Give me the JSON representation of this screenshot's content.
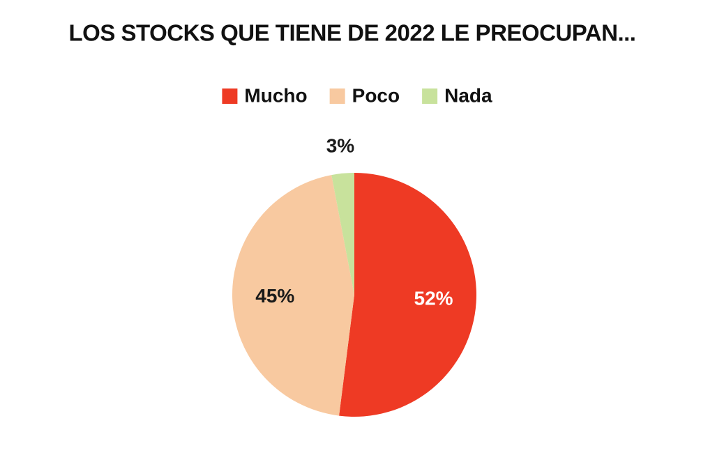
{
  "chart_data": {
    "type": "pie",
    "title": "LOS STOCKS QUE TIENE DE 2022 LE PREOCUPAN...",
    "categories": [
      "Mucho",
      "Poco",
      "Nada"
    ],
    "values": [
      52,
      45,
      3
    ],
    "value_labels": [
      "52%",
      "45%",
      "3%"
    ],
    "colors": [
      "#ee3a24",
      "#f8c9a0",
      "#c8e29c"
    ],
    "label_colors": [
      "#ffffff",
      "#1a1a1a",
      "#1a1a1a"
    ],
    "legend": "top"
  }
}
